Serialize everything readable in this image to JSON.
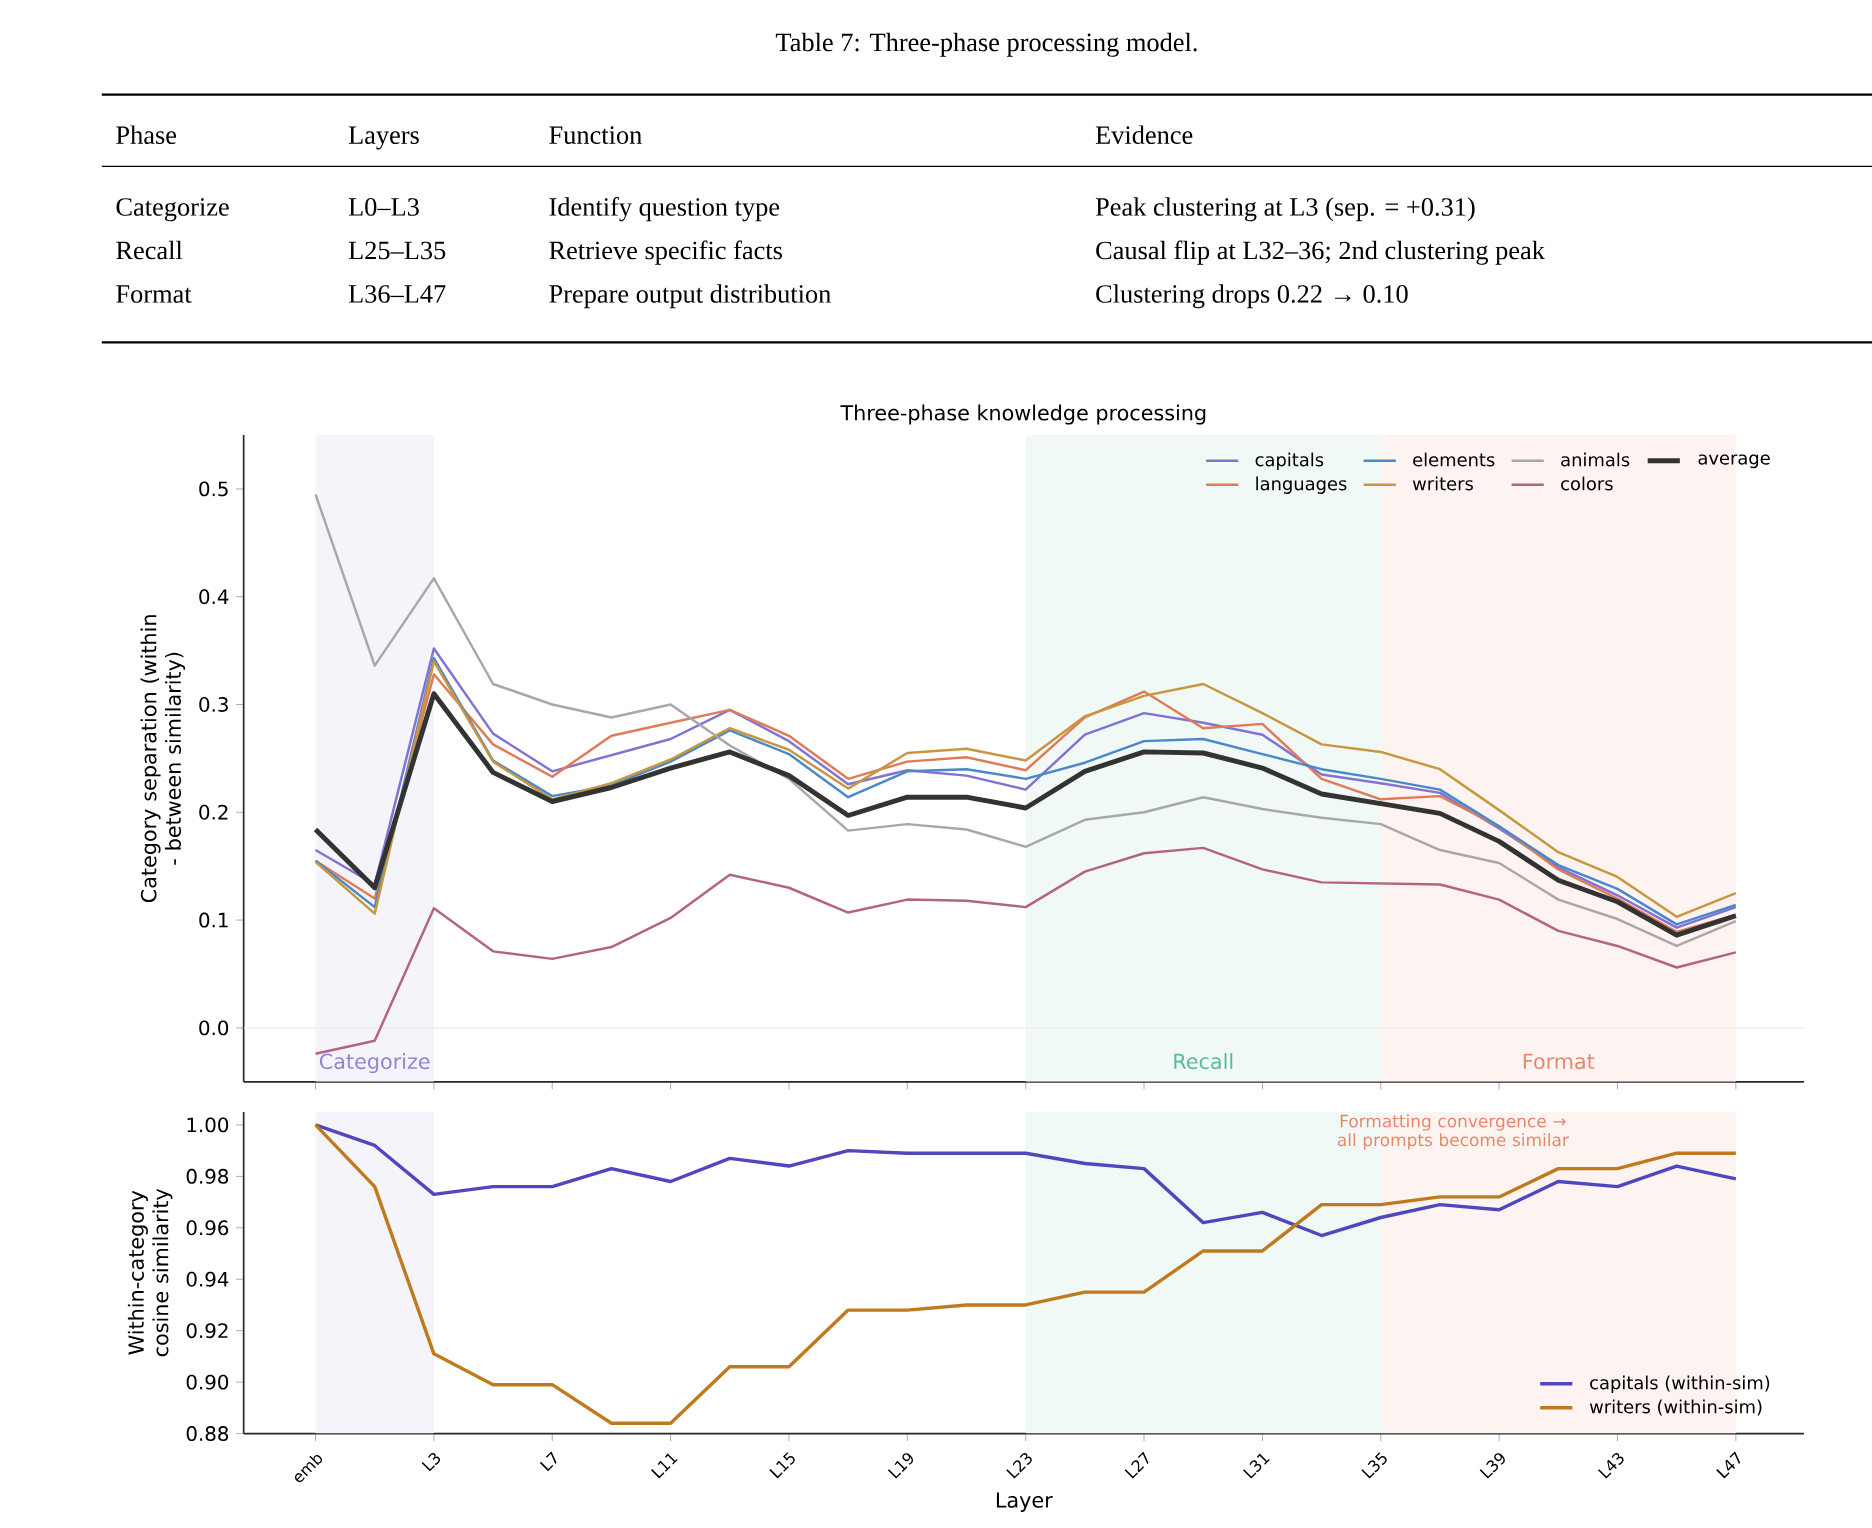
{
  "chart_data": [
    {
      "type": "other",
      "title": "Table 7: Three-phase processing model.",
      "categories": [
        "Phase",
        "Layers",
        "Function",
        "Evidence"
      ],
      "annotations": [
        "Categorize",
        "L0–L3",
        "Identify question type",
        "Peak clustering at L3 (sep. = +0.31)",
        "Recall",
        "L25–L35",
        "Retrieve specific facts",
        "Causal flip at L32–36; 2nd clustering peak",
        "Format",
        "L36–L47",
        "Prepare output distribution",
        "Clustering drops 0.22 → 0.10"
      ]
    },
    {
      "type": "line",
      "title": "Three-phase knowledge processing",
      "ylabel": "Category separation (within - between similarity)",
      "categories": [
        "emb",
        null,
        "L3",
        null,
        "L7",
        null,
        "L11",
        null,
        "L15",
        null,
        "L19",
        null,
        "L23",
        null,
        "L27",
        null,
        "L31",
        null,
        "L35",
        null,
        "L39",
        null,
        "L43",
        null,
        "L47"
      ],
      "ylim": [
        -0.05,
        0.55
      ],
      "yticks": [
        {
          "value": 0,
          "label": "0.0"
        },
        0.1,
        0.2,
        0.3,
        0.4,
        0.5
      ],
      "tick_labels": "y",
      "legend": "top right",
      "series": [
        {
          "name": "capitals",
          "color": "#8172d4",
          "values": [
            0.165,
            0.133,
            0.352,
            0.273,
            0.238,
            0.253,
            0.268,
            0.295,
            0.266,
            0.226,
            0.239,
            0.234,
            0.221,
            0.272,
            0.292,
            0.283,
            0.272,
            0.235,
            0.227,
            0.218,
            0.185,
            0.149,
            0.123,
            0.093,
            0.112
          ]
        },
        {
          "name": "languages",
          "color": "#e07b5a",
          "values": [
            0.155,
            0.12,
            0.328,
            0.263,
            0.233,
            0.271,
            0.283,
            0.295,
            0.271,
            0.231,
            0.247,
            0.251,
            0.239,
            0.288,
            0.312,
            0.278,
            0.282,
            0.231,
            0.212,
            0.215,
            0.187,
            0.147,
            0.12,
            0.089,
            0.105
          ]
        },
        {
          "name": "elements",
          "color": "#4a89c8",
          "values": [
            0.155,
            0.112,
            0.343,
            0.248,
            0.215,
            0.225,
            0.247,
            0.276,
            0.254,
            0.214,
            0.238,
            0.24,
            0.231,
            0.246,
            0.266,
            0.268,
            0.254,
            0.24,
            0.231,
            0.221,
            0.187,
            0.151,
            0.129,
            0.096,
            0.114
          ]
        },
        {
          "name": "writers",
          "color": "#c8963e",
          "values": [
            0.154,
            0.106,
            0.34,
            0.247,
            0.212,
            0.227,
            0.249,
            0.278,
            0.258,
            0.222,
            0.255,
            0.259,
            0.248,
            0.289,
            0.308,
            0.319,
            0.292,
            0.263,
            0.256,
            0.24,
            0.202,
            0.163,
            0.14,
            0.103,
            0.125
          ]
        },
        {
          "name": "animals",
          "color": "#a8a8a8",
          "values": [
            0.495,
            0.336,
            0.417,
            0.319,
            0.3,
            0.288,
            0.3,
            0.262,
            0.231,
            0.183,
            0.189,
            0.184,
            0.168,
            0.193,
            0.2,
            0.214,
            0.203,
            0.195,
            0.189,
            0.165,
            0.153,
            0.119,
            0.101,
            0.076,
            0.099
          ]
        },
        {
          "name": "colors",
          "color": "#b5647f",
          "values": [
            -0.024,
            -0.012,
            0.111,
            0.071,
            0.064,
            0.075,
            0.102,
            0.142,
            0.13,
            0.107,
            0.119,
            0.118,
            0.112,
            0.145,
            0.162,
            0.167,
            0.147,
            0.135,
            0.134,
            0.133,
            0.119,
            0.09,
            0.076,
            0.056,
            0.07
          ]
        },
        {
          "name": "average",
          "color": "#333333",
          "values": [
            0.184,
            0.13,
            0.31,
            0.237,
            0.21,
            0.223,
            0.241,
            0.256,
            0.234,
            0.197,
            0.214,
            0.214,
            0.204,
            0.238,
            0.256,
            0.255,
            0.241,
            0.217,
            0.208,
            0.199,
            0.173,
            0.137,
            0.117,
            0.086,
            0.104
          ]
        }
      ],
      "bands": [
        {
          "axis": "x",
          "from": "emb",
          "to": "L3",
          "label": "Categorize",
          "color": "#f5f4fb"
        },
        {
          "axis": "x",
          "from": "L23",
          "to": "L35",
          "label": "Recall",
          "color": "#f0f9f6"
        },
        {
          "axis": "x",
          "from": "L35",
          "to": "L47",
          "label": "Format",
          "color": "#fdf4f2"
        }
      ],
      "ref_lines": [
        {
          "axis": "y",
          "value": 0,
          "color": "#eeeeee"
        }
      ]
    },
    {
      "type": "line",
      "xlabel": "Layer",
      "ylabel": "Within-category cosine similarity",
      "categories": [
        "emb",
        null,
        "L3",
        null,
        "L7",
        null,
        "L11",
        null,
        "L15",
        null,
        "L19",
        null,
        "L23",
        null,
        "L27",
        null,
        "L31",
        null,
        "L35",
        null,
        "L39",
        null,
        "L43",
        null,
        "L47"
      ],
      "ylim": [
        0.88,
        1.005
      ],
      "yticks": [
        0.88,
        {
          "value": 0.9,
          "label": "0.90"
        },
        0.92,
        0.94,
        0.96,
        0.98,
        {
          "value": 1.0,
          "label": "1.00"
        }
      ],
      "legend": "bottom right",
      "series": [
        {
          "name": "capitals (within-sim)",
          "color": "#5046c0",
          "values": [
            1.0,
            0.992,
            0.973,
            0.976,
            0.976,
            0.983,
            0.978,
            0.987,
            0.984,
            0.99,
            0.989,
            0.989,
            0.989,
            0.985,
            0.983,
            0.962,
            0.966,
            0.957,
            0.964,
            0.969,
            0.967,
            0.978,
            0.976,
            0.984,
            0.979
          ]
        },
        {
          "name": "writers (within-sim)",
          "color": "#c07a1e",
          "values": [
            1.0,
            0.976,
            0.911,
            0.899,
            0.899,
            0.884,
            0.884,
            0.906,
            0.906,
            0.928,
            0.928,
            0.93,
            0.93,
            0.935,
            0.935,
            0.951,
            0.951,
            0.969,
            0.969,
            0.972,
            0.972,
            0.983,
            0.983,
            0.989,
            0.989
          ]
        }
      ],
      "bands": [
        {
          "axis": "x",
          "from": "emb",
          "to": "L3",
          "color": "#f5f4fb"
        },
        {
          "axis": "x",
          "from": "L23",
          "to": "L35",
          "color": "#f0f9f6"
        },
        {
          "axis": "x",
          "from": "L35",
          "to": "L47",
          "color": "#fdf4f2"
        }
      ],
      "annotations": [
        "Formatting convergence → all prompts become similar"
      ]
    }
  ]
}
